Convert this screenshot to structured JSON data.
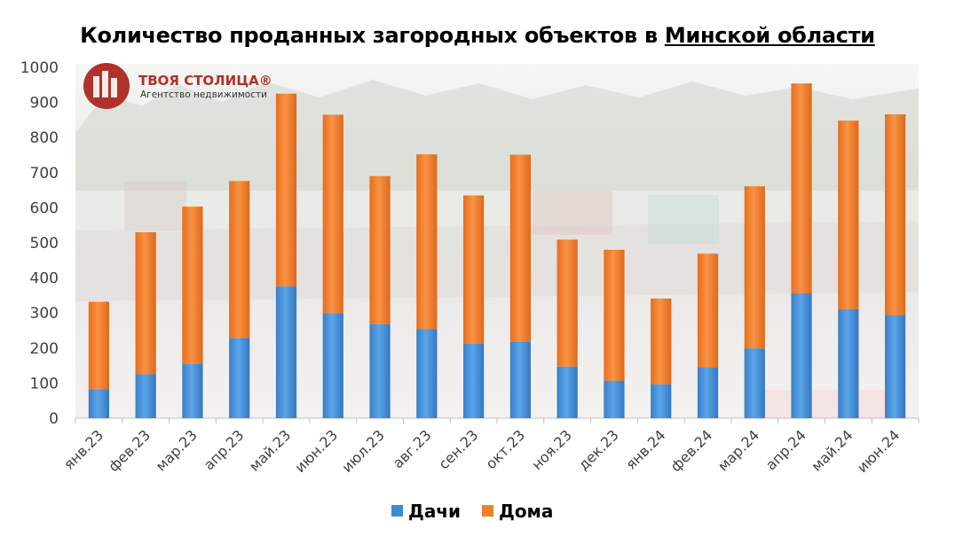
{
  "title_prefix": "Количество проданных загородных объектов в ",
  "title_underlined": "Минской области",
  "logo": {
    "name": "ТВОЯ СТОЛИЦА®",
    "tagline": "Агентство недвижимости",
    "color": "#b1312b"
  },
  "chart_data": {
    "type": "bar",
    "stacked": true,
    "title": "Количество проданных загородных объектов в Минской области",
    "categories": [
      "янв.23",
      "фев.23",
      "мар.23",
      "апр.23",
      "май.23",
      "июн.23",
      "июл.23",
      "авг.23",
      "сен.23",
      "окт.23",
      "ноя.23",
      "дек.23",
      "янв.24",
      "фев.24",
      "мар.24",
      "апр.24",
      "май.24",
      "июн.24"
    ],
    "series": [
      {
        "name": "Дачи",
        "color": "#3e8ad4",
        "values": [
          83,
          125,
          155,
          229,
          375,
          299,
          268,
          254,
          213,
          218,
          147,
          107,
          97,
          145,
          199,
          356,
          311,
          294
        ]
      },
      {
        "name": "Дома",
        "color": "#ef7f2e",
        "values": [
          249,
          405,
          448,
          447,
          550,
          566,
          422,
          498,
          422,
          533,
          362,
          373,
          244,
          324,
          462,
          598,
          537,
          572
        ]
      }
    ],
    "ylim": [
      0,
      1000
    ],
    "yticks": [
      0,
      100,
      200,
      300,
      400,
      500,
      600,
      700,
      800,
      900,
      1000
    ],
    "grid": false,
    "legend_position": "bottom"
  }
}
